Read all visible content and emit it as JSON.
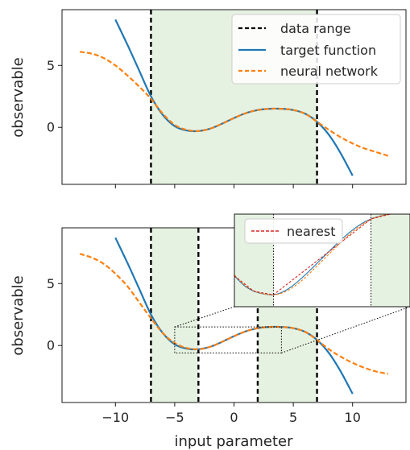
{
  "colors": {
    "target": "#1f77b4",
    "network": "#ff7f0e",
    "nearest": "#d62728",
    "range_fill": "#e6f2e1",
    "line": "#000000"
  },
  "chart_data": [
    {
      "type": "line",
      "ylabel": "observable",
      "xlim": [
        -14.5,
        14.5
      ],
      "ylim": [
        -4.6,
        9.5
      ],
      "yticks": [
        0,
        5
      ],
      "xticks": [
        -10,
        -5,
        0,
        5,
        10
      ],
      "show_xtick_labels": false,
      "shaded_ranges": [
        [
          -7,
          7
        ]
      ],
      "vlines": [
        -7,
        7
      ],
      "legend": {
        "placement": "top-right",
        "entries": [
          {
            "label": "data range",
            "style": "dashed",
            "color": "#000000"
          },
          {
            "label": "target function",
            "style": "solid",
            "color": "#1f77b4"
          },
          {
            "label": "neural network",
            "style": "dashed",
            "color": "#ff7f0e"
          }
        ]
      },
      "series": [
        {
          "key": "target",
          "style": "solid",
          "color": "#1f77b4",
          "x": [
            -10,
            -9,
            -8,
            -7,
            -6,
            -5,
            -4,
            -3,
            -2,
            -1,
            0,
            1,
            2,
            3,
            4,
            5,
            6,
            7,
            8,
            9,
            10
          ],
          "y": [
            8.7,
            6.7,
            4.6,
            2.5,
            1.0,
            0.1,
            -0.25,
            -0.3,
            -0.1,
            0.3,
            0.75,
            1.15,
            1.4,
            1.5,
            1.5,
            1.4,
            1.1,
            0.45,
            -0.6,
            -2.1,
            -3.9
          ]
        },
        {
          "key": "network",
          "style": "dashed",
          "color": "#ff7f0e",
          "x": [
            -13,
            -12,
            -11,
            -10,
            -9,
            -8,
            -7,
            -6,
            -5,
            -4,
            -3,
            -2,
            -1,
            0,
            1,
            2,
            3,
            4,
            5,
            6,
            7,
            8,
            9,
            10,
            11,
            12,
            13
          ],
          "y": [
            6.1,
            5.95,
            5.6,
            5.0,
            4.2,
            3.3,
            2.3,
            1.1,
            0.2,
            -0.2,
            -0.3,
            -0.1,
            0.3,
            0.75,
            1.15,
            1.4,
            1.5,
            1.5,
            1.4,
            1.1,
            0.45,
            -0.2,
            -0.8,
            -1.3,
            -1.7,
            -2.0,
            -2.3
          ]
        }
      ]
    },
    {
      "type": "line",
      "ylabel": "observable",
      "xlabel": "input parameter",
      "xlim": [
        -14.5,
        14.5
      ],
      "ylim": [
        -4.6,
        9.5
      ],
      "yticks": [
        0,
        5
      ],
      "xticks": [
        -10,
        -5,
        0,
        5,
        10
      ],
      "xtick_labels": [
        "−10",
        "−5",
        "0",
        "5",
        "10"
      ],
      "shaded_ranges": [
        [
          -7,
          -3
        ],
        [
          2,
          7
        ]
      ],
      "vlines": [
        -7,
        -3,
        2,
        7
      ],
      "zoom_box": {
        "x": [
          -5,
          4
        ],
        "y": [
          -0.6,
          1.5
        ]
      },
      "series": [
        {
          "key": "target",
          "style": "solid",
          "color": "#1f77b4",
          "x": [
            -10,
            -9,
            -8,
            -7,
            -6,
            -5,
            -4,
            -3,
            -2,
            -1,
            0,
            1,
            2,
            3,
            4,
            5,
            6,
            7,
            8,
            9,
            10
          ],
          "y": [
            8.7,
            6.7,
            4.6,
            2.5,
            1.0,
            0.1,
            -0.25,
            -0.3,
            -0.1,
            0.3,
            0.75,
            1.15,
            1.4,
            1.5,
            1.5,
            1.4,
            1.1,
            0.45,
            -0.6,
            -2.1,
            -3.9
          ]
        },
        {
          "key": "network",
          "style": "dashed",
          "color": "#ff7f0e",
          "x": [
            -13,
            -12,
            -11,
            -10,
            -9,
            -8,
            -7,
            -6,
            -5,
            -4,
            -3,
            -2,
            -1,
            0,
            1,
            2,
            3,
            4,
            5,
            6,
            7,
            8,
            9,
            10,
            11,
            12,
            13
          ],
          "y": [
            7.4,
            7.1,
            6.6,
            5.8,
            4.8,
            3.5,
            2.2,
            1.0,
            0.2,
            -0.2,
            -0.3,
            -0.1,
            0.3,
            0.75,
            1.15,
            1.4,
            1.5,
            1.5,
            1.4,
            1.1,
            0.45,
            -0.3,
            -0.9,
            -1.4,
            -1.8,
            -2.1,
            -2.3
          ]
        }
      ],
      "inset": {
        "xlim": [
          -5,
          4
        ],
        "ylim": [
          -0.6,
          1.5
        ],
        "shaded_ranges": [
          [
            -5,
            -3
          ],
          [
            2,
            4
          ]
        ],
        "vlines": [
          -3,
          2
        ],
        "legend": {
          "placement": "top-left",
          "entries": [
            {
              "label": "nearest",
              "style": "dashed",
              "color": "#d62728"
            }
          ]
        },
        "series": [
          {
            "key": "target",
            "style": "solid",
            "color": "#1f77b4",
            "x": [
              -5,
              -4.5,
              -4,
              -3.5,
              -3,
              -2.5,
              -2,
              -1.5,
              -1,
              -0.5,
              0,
              0.5,
              1,
              1.5,
              2,
              2.5,
              3,
              3.5,
              4
            ],
            "y": [
              0.1,
              -0.12,
              -0.25,
              -0.31,
              -0.33,
              -0.26,
              -0.12,
              0.07,
              0.28,
              0.5,
              0.72,
              0.93,
              1.12,
              1.28,
              1.39,
              1.46,
              1.5,
              1.51,
              1.5
            ]
          },
          {
            "key": "network",
            "style": "dashed",
            "color": "#ff7f0e",
            "x": [
              -5,
              -4.5,
              -4,
              -3.5,
              -3,
              -2.5,
              -2,
              -1.5,
              -1,
              -0.5,
              0,
              0.5,
              1,
              1.5,
              2,
              2.5,
              3,
              3.5,
              4
            ],
            "y": [
              0.12,
              -0.1,
              -0.24,
              -0.31,
              -0.33,
              -0.28,
              -0.16,
              0.01,
              0.22,
              0.44,
              0.66,
              0.88,
              1.08,
              1.25,
              1.38,
              1.46,
              1.5,
              1.51,
              1.5
            ]
          },
          {
            "key": "nearest",
            "style": "dashed",
            "color": "#d62728",
            "x": [
              -5,
              -4,
              -3,
              2,
              3,
              4
            ],
            "y": [
              0.1,
              -0.25,
              -0.33,
              1.39,
              1.5,
              1.5
            ]
          }
        ]
      }
    }
  ]
}
